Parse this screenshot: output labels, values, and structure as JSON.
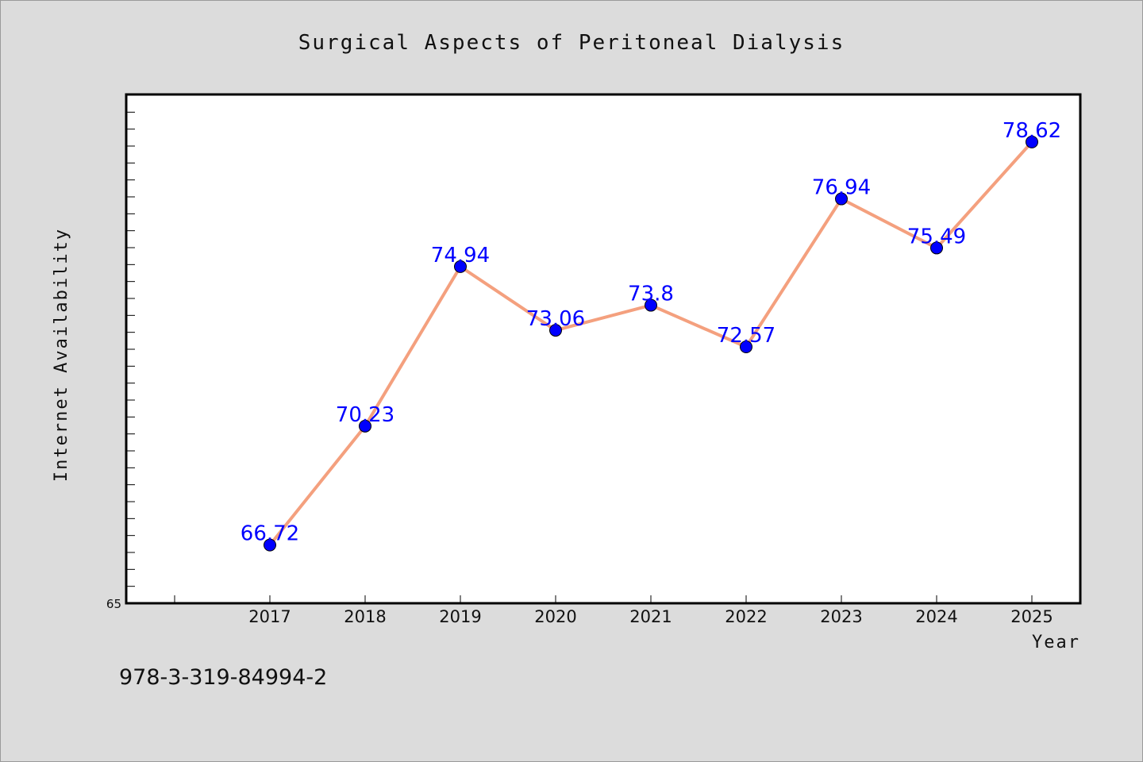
{
  "chart_data": {
    "type": "line",
    "title": "Surgical Aspects of Peritoneal Dialysis",
    "xlabel": "Year",
    "ylabel": "Internet Availability",
    "categories": [
      "2017",
      "2018",
      "2019",
      "2020",
      "2021",
      "2022",
      "2023",
      "2024",
      "2025"
    ],
    "series": [
      {
        "values": [
          66.72,
          70.23,
          74.94,
          73.06,
          73.8,
          72.57,
          76.94,
          75.49,
          78.62
        ]
      }
    ],
    "data_labels": [
      "66.72",
      "70.23",
      "74.94",
      "73.06",
      "73.8",
      "72.57",
      "76.94",
      "75.49",
      "78.62"
    ],
    "ylim": [
      65,
      80
    ],
    "ytick_label": "65",
    "line_color": "#f4a07e",
    "marker_color": "#0000ff",
    "label_color": "#0000ff",
    "grid": false,
    "legend": "none"
  },
  "footer": {
    "identifier": "978-3-319-84994-2"
  }
}
